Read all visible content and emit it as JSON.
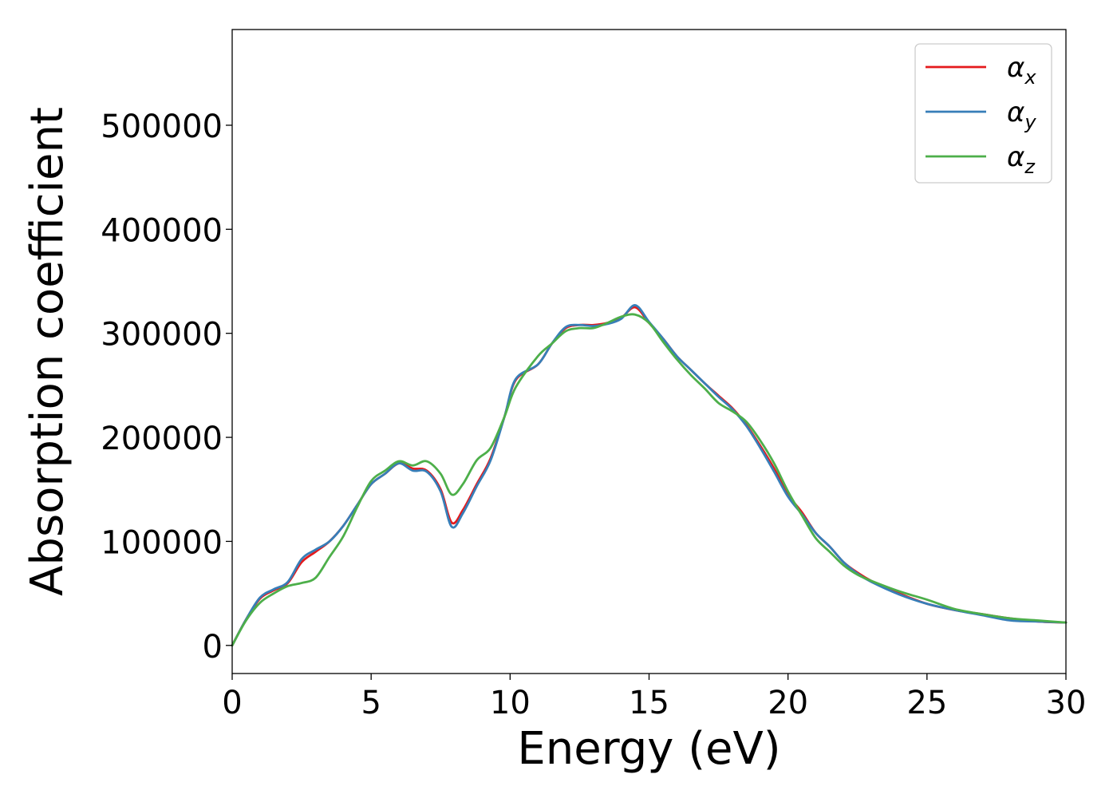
{
  "chart_data": {
    "type": "line",
    "title": "",
    "xlabel": "Energy (eV)",
    "ylabel": "Absorption coefficient",
    "xlim": [
      0,
      30
    ],
    "ylim": [
      -27000,
      592000
    ],
    "xticks": [
      0,
      5,
      10,
      15,
      20,
      25,
      30
    ],
    "yticks": [
      0,
      100000,
      200000,
      300000,
      400000,
      500000
    ],
    "xtick_labels": [
      "0",
      "5",
      "10",
      "15",
      "20",
      "25",
      "30"
    ],
    "ytick_labels": [
      "0",
      "100000",
      "200000",
      "300000",
      "400000",
      "500000"
    ],
    "grid": false,
    "legend_position": "top-right",
    "series": [
      {
        "name": "α",
        "subscript": "x",
        "color": "#e41a1c",
        "x": [
          0,
          0.5,
          1,
          1.5,
          2,
          2.5,
          3,
          3.5,
          4,
          4.5,
          5,
          5.5,
          6,
          6.5,
          7,
          7.5,
          7.9,
          8.3,
          8.8,
          9.3,
          9.8,
          10.2,
          11,
          11.5,
          12,
          12.5,
          13,
          13.5,
          14,
          14.5,
          15,
          15.5,
          16,
          16.5,
          17,
          17.5,
          18,
          18.5,
          19,
          19.5,
          20,
          20.5,
          21,
          21.5,
          22,
          22.5,
          23,
          24,
          25,
          26,
          27,
          28,
          29,
          30
        ],
        "y": [
          0,
          25000,
          45000,
          53000,
          60000,
          80000,
          90000,
          100000,
          115000,
          135000,
          155000,
          165000,
          175000,
          170000,
          168000,
          150000,
          118000,
          130000,
          155000,
          180000,
          220000,
          255000,
          270000,
          290000,
          305000,
          308000,
          308000,
          310000,
          315000,
          325000,
          310000,
          295000,
          278000,
          265000,
          252000,
          240000,
          228000,
          212000,
          192000,
          170000,
          145000,
          128000,
          108000,
          95000,
          80000,
          70000,
          62000,
          50000,
          40000,
          34000,
          30000,
          26000,
          23000,
          22000
        ]
      },
      {
        "name": "α",
        "subscript": "y",
        "color": "#377eb8",
        "x": [
          0,
          0.5,
          1,
          1.5,
          2,
          2.5,
          3,
          3.5,
          4,
          4.5,
          5,
          5.5,
          6,
          6.5,
          7,
          7.5,
          7.9,
          8.3,
          8.8,
          9.3,
          9.8,
          10.2,
          11,
          11.5,
          12,
          12.5,
          13,
          13.5,
          14,
          14.5,
          15,
          15.5,
          16,
          16.5,
          17,
          17.5,
          18,
          18.5,
          19,
          19.5,
          20,
          20.5,
          21,
          21.5,
          22,
          22.5,
          23,
          24,
          25,
          26,
          27,
          28,
          29,
          30
        ],
        "y": [
          0,
          25000,
          46000,
          54000,
          61000,
          83000,
          92000,
          100000,
          115000,
          135000,
          155000,
          165000,
          175000,
          168000,
          167000,
          148000,
          114000,
          127000,
          153000,
          178000,
          220000,
          256000,
          270000,
          290000,
          306000,
          308000,
          307000,
          309000,
          314000,
          327000,
          311000,
          295000,
          278000,
          265000,
          252000,
          239000,
          227000,
          211000,
          190000,
          167000,
          143000,
          126000,
          108000,
          95000,
          80000,
          69000,
          61000,
          49000,
          40000,
          34000,
          29000,
          24000,
          23000,
          22000
        ]
      },
      {
        "name": "α",
        "subscript": "z",
        "color": "#4daf4a",
        "x": [
          0,
          0.5,
          1,
          1.5,
          2,
          2.5,
          3,
          3.5,
          4,
          4.5,
          5,
          5.5,
          6,
          6.5,
          7,
          7.5,
          7.9,
          8.3,
          8.8,
          9.3,
          9.8,
          10.2,
          11,
          11.5,
          12,
          12.5,
          13,
          13.5,
          14,
          14.5,
          15,
          15.5,
          16,
          16.5,
          17,
          17.5,
          18,
          18.5,
          19,
          19.5,
          20,
          20.5,
          21,
          21.5,
          22,
          22.5,
          23,
          24,
          25,
          26,
          27,
          28,
          29,
          30
        ],
        "y": [
          0,
          24000,
          41000,
          50000,
          57000,
          60000,
          65000,
          85000,
          105000,
          133000,
          158000,
          168000,
          177000,
          173000,
          177000,
          165000,
          145000,
          155000,
          178000,
          190000,
          220000,
          248000,
          278000,
          290000,
          302000,
          305000,
          305000,
          310000,
          316000,
          318000,
          310000,
          292000,
          275000,
          260000,
          247000,
          233000,
          225000,
          215000,
          197000,
          175000,
          148000,
          125000,
          103000,
          90000,
          77000,
          68000,
          62000,
          52000,
          44000,
          35000,
          30000,
          26000,
          24000,
          22000
        ]
      }
    ]
  }
}
